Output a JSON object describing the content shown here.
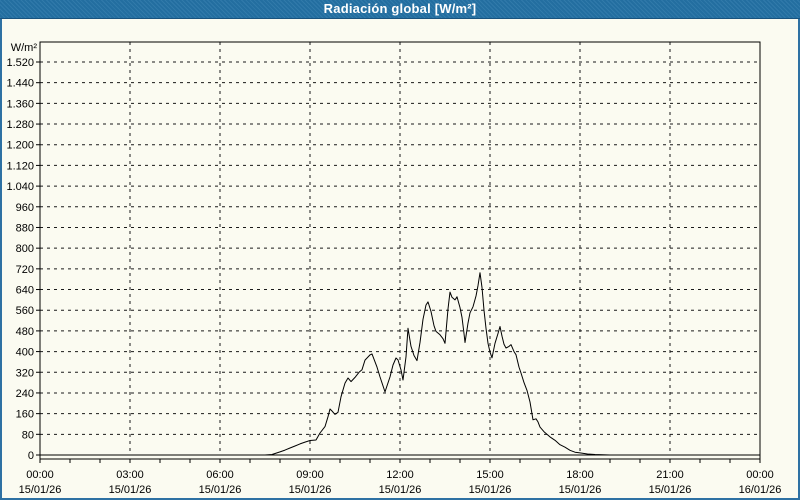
{
  "window": {
    "title": "Radiación global [W/m²]"
  },
  "colors": {
    "titlebar_bg": "#2472A5",
    "titlebar_border": "#19537E",
    "titlebar_text": "#FFFFFF",
    "window_border": "#2E71A3",
    "window_bg": "#FBFBF1",
    "grid_color": "#1A1A1A",
    "axis_color": "#000000",
    "line_color": "#000000",
    "label_color": "#000000"
  },
  "chart_data": {
    "type": "line",
    "title": "Radiación global [W/m²]",
    "xlabel": "",
    "ylabel": "W/m²",
    "ylim": [
      0,
      1600
    ],
    "y_tick_step": 80,
    "y_tick_labels": [
      "0",
      "80",
      "160",
      "240",
      "320",
      "400",
      "480",
      "560",
      "640",
      "720",
      "800",
      "880",
      "960",
      "1.040",
      "1.120",
      "1.200",
      "1.280",
      "1.360",
      "1.440",
      "1.520"
    ],
    "x_range_hours": [
      0,
      24
    ],
    "x_tick_step_hours": 3,
    "x_minor_tick_hours": 1,
    "grid": "dashed",
    "legend": "none",
    "x_ticks": [
      {
        "time": "00:00",
        "date": "15/01/26"
      },
      {
        "time": "03:00",
        "date": "15/01/26"
      },
      {
        "time": "06:00",
        "date": "15/01/26"
      },
      {
        "time": "09:00",
        "date": "15/01/26"
      },
      {
        "time": "12:00",
        "date": "15/01/26"
      },
      {
        "time": "15:00",
        "date": "15/01/26"
      },
      {
        "time": "18:00",
        "date": "15/01/26"
      },
      {
        "time": "21:00",
        "date": "15/01/26"
      },
      {
        "time": "00:00",
        "date": "16/01/26"
      }
    ],
    "series": [
      {
        "name": "Radiación global",
        "unit": "W/m²",
        "points": [
          [
            "00:00",
            0
          ],
          [
            "01:00",
            0
          ],
          [
            "02:00",
            0
          ],
          [
            "03:00",
            0
          ],
          [
            "04:00",
            0
          ],
          [
            "05:00",
            0
          ],
          [
            "06:00",
            0
          ],
          [
            "07:00",
            0
          ],
          [
            "07:30",
            0
          ],
          [
            "07:44",
            2
          ],
          [
            "08:00",
            12
          ],
          [
            "08:10",
            19
          ],
          [
            "08:20",
            27
          ],
          [
            "08:30",
            35
          ],
          [
            "08:40",
            43
          ],
          [
            "08:50",
            50
          ],
          [
            "09:00",
            56
          ],
          [
            "09:12",
            58
          ],
          [
            "09:20",
            85
          ],
          [
            "09:30",
            110
          ],
          [
            "09:36",
            148
          ],
          [
            "09:40",
            178
          ],
          [
            "09:44",
            170
          ],
          [
            "09:50",
            157
          ],
          [
            "09:56",
            165
          ],
          [
            "10:02",
            225
          ],
          [
            "10:10",
            278
          ],
          [
            "10:16",
            298
          ],
          [
            "10:22",
            284
          ],
          [
            "10:30",
            300
          ],
          [
            "10:38",
            320
          ],
          [
            "10:44",
            330
          ],
          [
            "10:50",
            367
          ],
          [
            "11:00",
            387
          ],
          [
            "11:04",
            391
          ],
          [
            "11:14",
            340
          ],
          [
            "11:20",
            302
          ],
          [
            "11:30",
            244
          ],
          [
            "11:40",
            302
          ],
          [
            "11:46",
            348
          ],
          [
            "11:52",
            375
          ],
          [
            "11:56",
            368
          ],
          [
            "12:02",
            329
          ],
          [
            "12:06",
            290
          ],
          [
            "12:12",
            380
          ],
          [
            "12:16",
            490
          ],
          [
            "12:22",
            420
          ],
          [
            "12:28",
            385
          ],
          [
            "12:34",
            365
          ],
          [
            "12:40",
            435
          ],
          [
            "12:46",
            525
          ],
          [
            "12:52",
            580
          ],
          [
            "12:56",
            592
          ],
          [
            "13:02",
            555
          ],
          [
            "13:08",
            500
          ],
          [
            "13:12",
            478
          ],
          [
            "13:20",
            465
          ],
          [
            "13:26",
            450
          ],
          [
            "13:30",
            432
          ],
          [
            "13:36",
            565
          ],
          [
            "13:40",
            630
          ],
          [
            "13:44",
            610
          ],
          [
            "13:50",
            600
          ],
          [
            "13:54",
            612
          ],
          [
            "14:00",
            570
          ],
          [
            "14:04",
            532
          ],
          [
            "14:08",
            470
          ],
          [
            "14:10",
            435
          ],
          [
            "14:16",
            510
          ],
          [
            "14:20",
            550
          ],
          [
            "14:26",
            573
          ],
          [
            "14:32",
            615
          ],
          [
            "14:36",
            655
          ],
          [
            "14:40",
            705
          ],
          [
            "14:44",
            648
          ],
          [
            "14:48",
            560
          ],
          [
            "14:52",
            490
          ],
          [
            "14:56",
            432
          ],
          [
            "15:00",
            398
          ],
          [
            "15:04",
            376
          ],
          [
            "15:10",
            432
          ],
          [
            "15:16",
            470
          ],
          [
            "15:20",
            497
          ],
          [
            "15:24",
            460
          ],
          [
            "15:28",
            428
          ],
          [
            "15:32",
            414
          ],
          [
            "15:38",
            420
          ],
          [
            "15:42",
            427
          ],
          [
            "15:48",
            400
          ],
          [
            "15:52",
            388
          ],
          [
            "15:58",
            340
          ],
          [
            "16:02",
            317
          ],
          [
            "16:08",
            280
          ],
          [
            "16:14",
            250
          ],
          [
            "16:20",
            205
          ],
          [
            "16:26",
            136
          ],
          [
            "16:32",
            140
          ],
          [
            "16:36",
            128
          ],
          [
            "16:40",
            108
          ],
          [
            "16:48",
            90
          ],
          [
            "17:00",
            70
          ],
          [
            "17:10",
            57
          ],
          [
            "17:20",
            40
          ],
          [
            "17:30",
            30
          ],
          [
            "17:40",
            18
          ],
          [
            "17:50",
            11
          ],
          [
            "18:00",
            8
          ],
          [
            "18:15",
            4
          ],
          [
            "18:30",
            2
          ],
          [
            "18:45",
            1
          ],
          [
            "19:00",
            0
          ],
          [
            "20:00",
            0
          ],
          [
            "21:00",
            0
          ],
          [
            "22:00",
            0
          ],
          [
            "23:00",
            0
          ],
          [
            "24:00",
            0
          ]
        ]
      }
    ]
  }
}
